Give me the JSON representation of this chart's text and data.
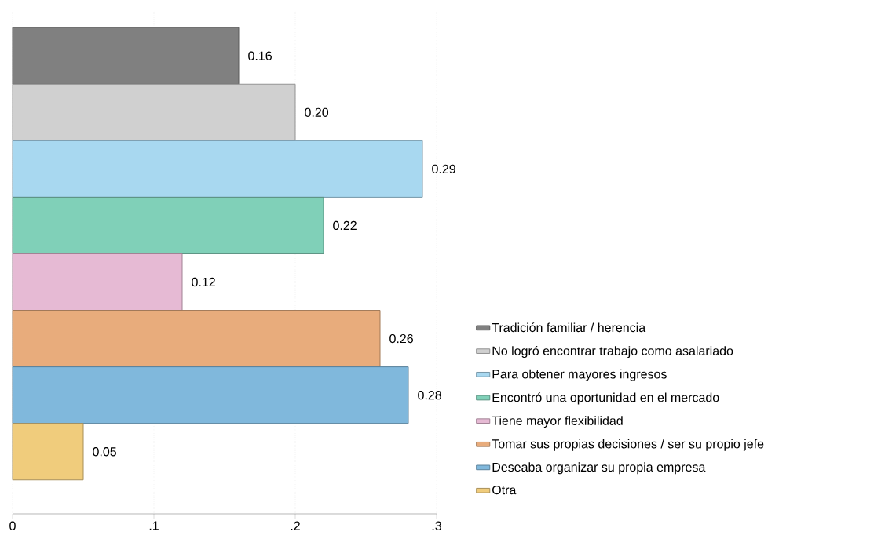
{
  "chart_data": {
    "type": "bar",
    "orientation": "horizontal",
    "categories": [
      null,
      null,
      null,
      null,
      null,
      null,
      null,
      null
    ],
    "series": [
      {
        "name": "Tradición familiar / herencia",
        "color": "#808080",
        "values": [
          0.16,
          null,
          null,
          null,
          null,
          null,
          null,
          null
        ],
        "value_labels": [
          "0.16",
          null,
          null,
          null,
          null,
          null,
          null,
          null
        ]
      },
      {
        "name": "No logró encontrar trabajo como asalariado",
        "color": "#d0d0d0",
        "values": [
          null,
          0.2,
          null,
          null,
          null,
          null,
          null,
          null
        ],
        "value_labels": [
          null,
          "0.20",
          null,
          null,
          null,
          null,
          null,
          null
        ]
      },
      {
        "name": "Para obtener mayores ingresos",
        "color": "#a8d8f0",
        "values": [
          null,
          null,
          0.29,
          null,
          null,
          null,
          null,
          null
        ],
        "value_labels": [
          null,
          null,
          "0.29",
          null,
          null,
          null,
          null,
          null
        ]
      },
      {
        "name": "Encontró una oportunidad en el mercado",
        "color": "#80d0b8",
        "values": [
          null,
          null,
          null,
          0.22,
          null,
          null,
          null,
          null
        ],
        "value_labels": [
          null,
          null,
          null,
          "0.22",
          null,
          null,
          null,
          null
        ]
      },
      {
        "name": "Tiene mayor flexibilidad",
        "color": "#e6bad4",
        "values": [
          null,
          null,
          null,
          null,
          0.12,
          null,
          null,
          null
        ],
        "value_labels": [
          null,
          null,
          null,
          null,
          "0.12",
          null,
          null,
          null
        ]
      },
      {
        "name": "Tomar sus propias decisiones / ser su propio jefe",
        "color": "#e8ac7c",
        "values": [
          null,
          null,
          null,
          null,
          null,
          0.26,
          null,
          null
        ],
        "value_labels": [
          null,
          null,
          null,
          null,
          null,
          "0.26",
          null,
          null
        ]
      },
      {
        "name": "Deseaba organizar su propia empresa",
        "color": "#80b8dc",
        "values": [
          null,
          null,
          null,
          null,
          null,
          null,
          0.28,
          null
        ],
        "value_labels": [
          null,
          null,
          null,
          null,
          null,
          null,
          "0.28",
          null
        ]
      },
      {
        "name": "Otra",
        "color": "#f0cc7c",
        "values": [
          null,
          null,
          null,
          null,
          null,
          null,
          null,
          0.05
        ],
        "value_labels": [
          null,
          null,
          null,
          null,
          null,
          null,
          null,
          "0.05"
        ]
      }
    ],
    "xlim": [
      0,
      0.3
    ],
    "xticks": [
      0,
      {
        "value": 0.1,
        "label": ".1"
      },
      {
        "value": 0.2,
        "label": ".2"
      },
      {
        "value": 0.3,
        "label": ".3"
      }
    ],
    "grid": "x",
    "legend": "right",
    "tick_labels": "x"
  }
}
